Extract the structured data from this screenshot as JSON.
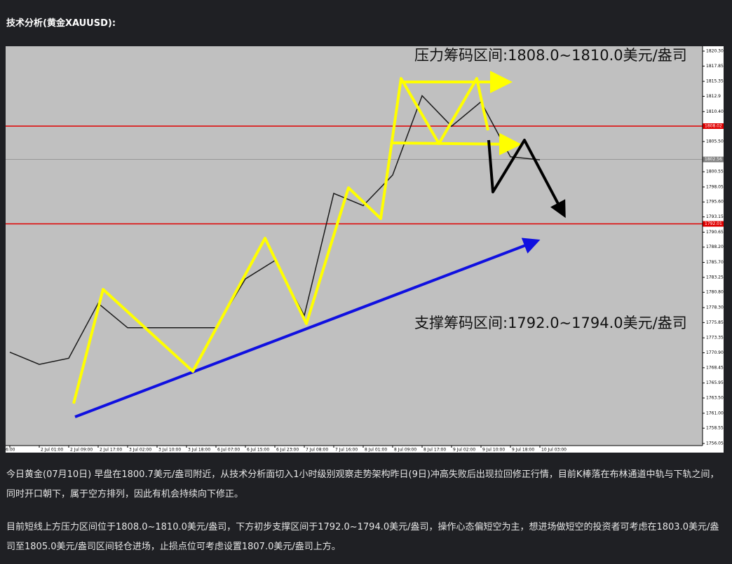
{
  "header": {
    "title": "技术分析(黄金XAUUSD):"
  },
  "chart_data": {
    "type": "line",
    "annotations": [
      "压力筹码区间:1808.0~1810.0美元/盎司",
      "支撑筹码区间:1792.0~1794.0美元/盎司"
    ],
    "categories": [
      "6:00",
      "2 Jul 01:00",
      "2 Jul 09:00",
      "2 Jul 17:00",
      "3 Jul 02:00",
      "3 Jul 10:00",
      "3 Jul 18:00",
      "6 Jul 07:00",
      "6 Jul 15:00",
      "6 Jul 23:00",
      "7 Jul 08:00",
      "7 Jul 16:00",
      "8 Jul 01:00",
      "8 Jul 09:00",
      "8 Jul 17:00",
      "9 Jul 02:00",
      "9 Jul 10:00",
      "9 Jul 18:00",
      "10 Jul 03:00"
    ],
    "values": [
      1771,
      1769,
      1770,
      1779,
      1775,
      1775,
      1775,
      1775,
      1783,
      1786,
      1777,
      1797,
      1795,
      1800,
      1813,
      1808,
      1812,
      1803,
      1802.5
    ],
    "color": "#1a1a1a",
    "ylim": [
      1755.7,
      1821.1
    ],
    "yticks": [
      {
        "value": 1820.3,
        "label": "1820.30"
      },
      1817.85,
      1815.35,
      1812.9,
      {
        "value": 1810.4,
        "label": "1810.40"
      },
      {
        "value": 1805.5,
        "label": "1805.50"
      },
      1800.55,
      1798.05,
      {
        "value": 1795.6,
        "label": "1795.60"
      },
      1793.15,
      1790.65,
      {
        "value": 1788.2,
        "label": "1788.20"
      },
      {
        "value": 1785.7,
        "label": "1785.70"
      },
      1783.25,
      {
        "value": 1780.8,
        "label": "1780.80"
      },
      {
        "value": 1778.3,
        "label": "1778.30"
      },
      1775.85,
      1773.35,
      {
        "value": 1770.9,
        "label": "1770.90"
      },
      1768.45,
      1765.95,
      {
        "value": 1763.5,
        "label": "1763.50"
      },
      {
        "value": 1761,
        "label": "1761.00"
      },
      1758.55,
      1756.05
    ],
    "levels": [
      {
        "value": 1808.02,
        "color": "#e00000"
      },
      {
        "value": 1802.56,
        "color": "#808080"
      },
      {
        "value": 1792.01,
        "color": "#e00000"
      }
    ]
  },
  "paragraphs": [
    "今日黄金(07月10日) 早盘在1800.7美元/盎司附近，从技术分析面切入1小时级别观察走势架构昨日(9日)冲高失败后出现拉回修正行情，目前K棒落在布林通道中轨与下轨之间，同时开口朝下，属于空方排列，因此有机会持续向下修正。",
    "目前短线上方压力区间位于1808.0~1810.0美元/盎司，下方初步支撑区间于1792.0~1794.0美元/盎司，操作心态偏短空为主，想进场做短空的投资者可考虑在1803.0美元/盎司至1805.0美元/盎司区间轻仓进场，止损点位可考虑设置1807.0美元/盎司上方。"
  ]
}
